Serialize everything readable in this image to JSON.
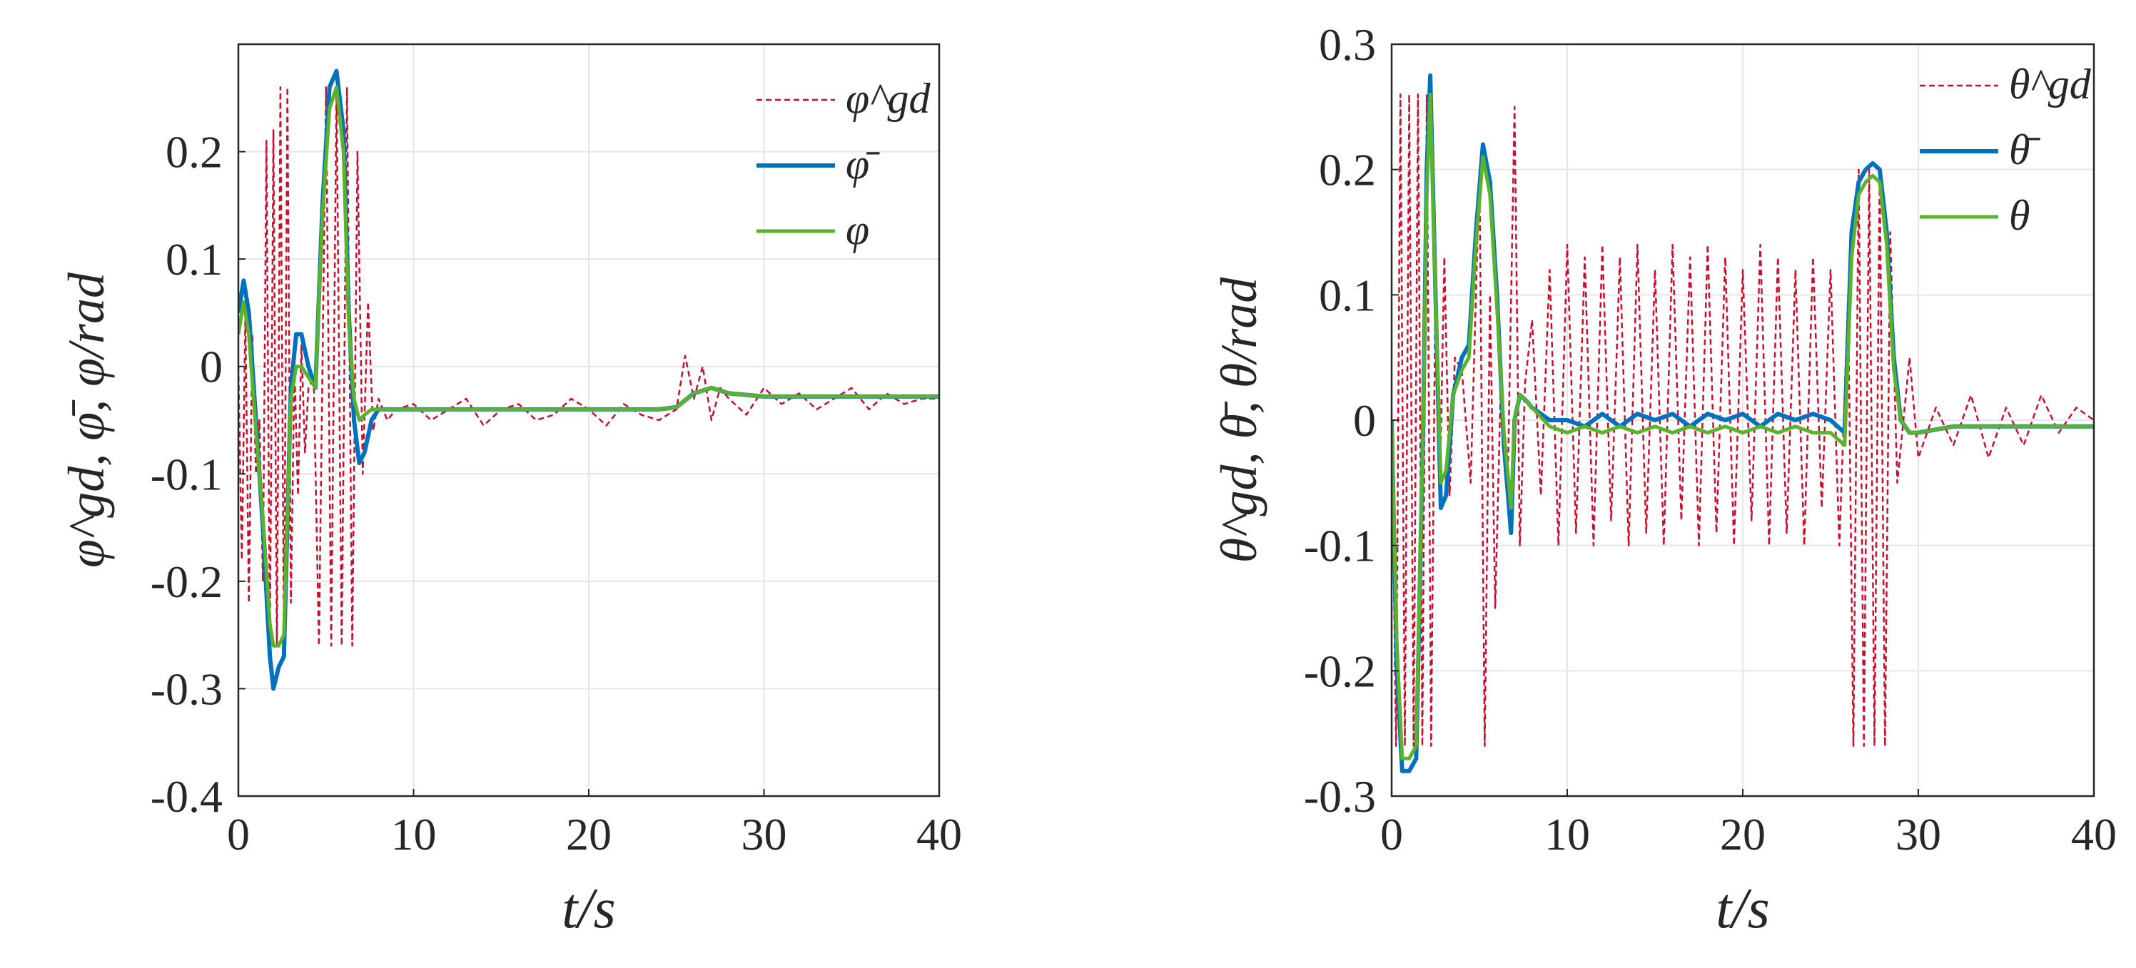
{
  "colors": {
    "reference": "#c8102e",
    "filtered": "#0072bd",
    "actual": "#5ab22e",
    "axis": "#262626"
  },
  "chart_data": [
    {
      "type": "line",
      "ylabel": "φ^gd, φ̄, φ/rad",
      "xlabel": "t/s",
      "xlim": [
        0,
        40
      ],
      "ylim": [
        -0.4,
        0.3
      ],
      "xticks": [
        0,
        10,
        20,
        30,
        40
      ],
      "xtick_labels": [
        "0",
        "10",
        "20",
        "30",
        "40"
      ],
      "yticks": [
        -0.4,
        -0.3,
        -0.2,
        -0.1,
        0,
        0.1,
        0.2
      ],
      "ytick_labels": [
        "-0.4",
        "-0.3",
        "-0.2",
        "-0.1",
        "0",
        "0.1",
        "0.2"
      ],
      "grid": true,
      "legend_position": "top-right",
      "legend": [
        "φ^gd",
        "φ̄",
        "φ"
      ],
      "series": [
        {
          "name": "φ^gd",
          "style": "dashed",
          "x": [
            0,
            0.2,
            0.4,
            0.6,
            0.8,
            1.0,
            1.2,
            1.4,
            1.6,
            1.8,
            2.0,
            2.2,
            2.4,
            2.6,
            2.8,
            3.0,
            3.2,
            3.4,
            3.6,
            3.8,
            4.0,
            4.3,
            4.6,
            5.0,
            5.3,
            5.6,
            5.9,
            6.2,
            6.5,
            6.8,
            7.1,
            7.4,
            7.7,
            8.0,
            8.5,
            9.0,
            10,
            11,
            12,
            13,
            14,
            15,
            16,
            17,
            18,
            19,
            20,
            21,
            22,
            23,
            24,
            25,
            25.5,
            26,
            26.5,
            27,
            27.5,
            28,
            29,
            30,
            31,
            32,
            33,
            34,
            35,
            36,
            37,
            38,
            39,
            40
          ],
          "y": [
            0.0,
            -0.18,
            0.05,
            -0.22,
            0.03,
            -0.1,
            -0.05,
            -0.2,
            0.21,
            -0.26,
            0.22,
            -0.26,
            0.26,
            -0.26,
            0.26,
            -0.22,
            0.0,
            -0.12,
            0.02,
            -0.08,
            -0.02,
            -0.01,
            -0.26,
            0.26,
            -0.26,
            0.26,
            -0.26,
            0.26,
            -0.26,
            0.2,
            -0.1,
            0.06,
            -0.06,
            -0.03,
            -0.05,
            -0.04,
            -0.035,
            -0.05,
            -0.04,
            -0.03,
            -0.055,
            -0.04,
            -0.035,
            -0.05,
            -0.045,
            -0.03,
            -0.04,
            -0.055,
            -0.035,
            -0.045,
            -0.05,
            -0.04,
            0.01,
            -0.03,
            0.0,
            -0.05,
            -0.02,
            -0.03,
            -0.045,
            -0.02,
            -0.035,
            -0.025,
            -0.04,
            -0.03,
            -0.02,
            -0.04,
            -0.025,
            -0.035,
            -0.03,
            -0.03
          ]
        },
        {
          "name": "φ̄",
          "style": "solid",
          "x": [
            0,
            0.3,
            0.6,
            1.0,
            1.4,
            1.8,
            2.0,
            2.3,
            2.6,
            3.0,
            3.3,
            3.6,
            4.0,
            4.4,
            4.8,
            5.2,
            5.6,
            6.0,
            6.3,
            6.6,
            6.9,
            7.2,
            7.6,
            8.0,
            9.0,
            10,
            15,
            20,
            24,
            25,
            26,
            27,
            28,
            30,
            35,
            40
          ],
          "y": [
            0.05,
            0.08,
            0.05,
            -0.05,
            -0.15,
            -0.27,
            -0.3,
            -0.28,
            -0.27,
            -0.02,
            0.03,
            0.03,
            0.0,
            -0.02,
            0.15,
            0.26,
            0.275,
            0.22,
            0.05,
            -0.05,
            -0.09,
            -0.08,
            -0.05,
            -0.04,
            -0.04,
            -0.04,
            -0.04,
            -0.04,
            -0.04,
            -0.038,
            -0.025,
            -0.02,
            -0.025,
            -0.028,
            -0.028,
            -0.028
          ]
        },
        {
          "name": "φ",
          "style": "solid",
          "x": [
            0,
            0.3,
            0.6,
            1.0,
            1.4,
            1.8,
            2.0,
            2.3,
            2.6,
            3.0,
            3.3,
            3.6,
            4.0,
            4.4,
            4.8,
            5.2,
            5.6,
            6.0,
            6.3,
            6.6,
            6.9,
            7.2,
            7.6,
            8.0,
            9.0,
            10,
            15,
            20,
            24,
            25,
            26,
            27,
            28,
            30,
            35,
            40
          ],
          "y": [
            0.03,
            0.06,
            0.03,
            -0.06,
            -0.14,
            -0.24,
            -0.26,
            -0.26,
            -0.25,
            -0.03,
            0.0,
            0.0,
            -0.01,
            -0.02,
            0.14,
            0.24,
            0.26,
            0.2,
            0.04,
            -0.03,
            -0.05,
            -0.045,
            -0.04,
            -0.04,
            -0.04,
            -0.04,
            -0.04,
            -0.04,
            -0.04,
            -0.038,
            -0.025,
            -0.02,
            -0.025,
            -0.028,
            -0.028,
            -0.028
          ]
        }
      ]
    },
    {
      "type": "line",
      "ylabel": "θ^gd, θ̄, θ/rad",
      "xlabel": "t/s",
      "xlim": [
        0,
        40
      ],
      "ylim": [
        -0.3,
        0.3
      ],
      "xticks": [
        0,
        10,
        20,
        30,
        40
      ],
      "xtick_labels": [
        "0",
        "10",
        "20",
        "30",
        "40"
      ],
      "yticks": [
        -0.3,
        -0.2,
        -0.1,
        0,
        0.1,
        0.2,
        0.3
      ],
      "ytick_labels": [
        "-0.3",
        "-0.2",
        "-0.1",
        "0",
        "0.1",
        "0.2",
        "0.3"
      ],
      "grid": true,
      "legend_position": "top-right",
      "legend": [
        "θ^gd",
        "θ̄",
        "θ"
      ],
      "series": [
        {
          "name": "θ^gd",
          "style": "dashed",
          "x": [
            0,
            0.25,
            0.5,
            0.75,
            1.0,
            1.25,
            1.5,
            1.75,
            2.0,
            2.25,
            2.5,
            2.75,
            3.0,
            3.3,
            3.6,
            4.0,
            4.5,
            5.0,
            5.3,
            5.6,
            5.9,
            6.2,
            6.6,
            7.0,
            7.3,
            7.6,
            8.0,
            8.5,
            9.0,
            9.5,
            10,
            10.5,
            11,
            11.5,
            12,
            12.5,
            13,
            13.5,
            14,
            14.5,
            15,
            15.5,
            16,
            16.5,
            17,
            17.5,
            18,
            18.5,
            19,
            19.5,
            20,
            20.5,
            21,
            21.5,
            22,
            22.5,
            23,
            23.5,
            24,
            24.5,
            25,
            25.5,
            26,
            26.3,
            26.6,
            26.9,
            27.2,
            27.5,
            27.8,
            28.1,
            28.4,
            28.8,
            29.5,
            30,
            31,
            32,
            33,
            34,
            35,
            36,
            37,
            38,
            39,
            40
          ],
          "y": [
            0.0,
            -0.26,
            0.26,
            -0.26,
            0.26,
            -0.26,
            0.26,
            -0.26,
            0.26,
            -0.26,
            0.12,
            -0.05,
            0.13,
            -0.06,
            0.05,
            0.04,
            -0.05,
            0.2,
            -0.26,
            0.1,
            -0.15,
            0.02,
            -0.06,
            0.25,
            -0.1,
            0.03,
            0.08,
            -0.06,
            0.12,
            -0.1,
            0.14,
            -0.09,
            0.13,
            -0.1,
            0.14,
            -0.08,
            0.13,
            -0.1,
            0.14,
            -0.09,
            0.12,
            -0.1,
            0.14,
            -0.08,
            0.13,
            -0.1,
            0.14,
            -0.09,
            0.13,
            -0.1,
            0.12,
            -0.08,
            0.14,
            -0.1,
            0.13,
            -0.09,
            0.12,
            -0.1,
            0.13,
            -0.07,
            0.12,
            -0.1,
            0.1,
            -0.26,
            0.2,
            -0.26,
            0.2,
            -0.26,
            0.2,
            -0.26,
            0.15,
            -0.05,
            0.05,
            -0.03,
            0.01,
            -0.02,
            0.02,
            -0.03,
            0.01,
            -0.02,
            0.02,
            -0.01,
            0.01,
            0.0
          ]
        },
        {
          "name": "θ̄",
          "style": "solid",
          "x": [
            0,
            0.3,
            0.6,
            1.0,
            1.4,
            1.8,
            2.0,
            2.2,
            2.5,
            2.8,
            3.1,
            3.5,
            4.0,
            4.4,
            4.8,
            5.2,
            5.6,
            6.0,
            6.4,
            6.8,
            7.0,
            7.3,
            7.7,
            8.0,
            9.0,
            10,
            11,
            12,
            13,
            14,
            15,
            16,
            17,
            18,
            19,
            20,
            21,
            22,
            23,
            24,
            25,
            25.8,
            26.2,
            26.6,
            27.0,
            27.4,
            27.8,
            28.2,
            28.6,
            29.0,
            29.5,
            30,
            32,
            35,
            40
          ],
          "y": [
            0.0,
            -0.2,
            -0.28,
            -0.28,
            -0.27,
            0.0,
            0.2,
            0.275,
            0.1,
            -0.07,
            -0.06,
            0.02,
            0.05,
            0.06,
            0.15,
            0.22,
            0.19,
            0.1,
            -0.02,
            -0.09,
            0.0,
            0.02,
            0.015,
            0.01,
            0.0,
            0.0,
            -0.005,
            0.005,
            -0.005,
            0.005,
            0.0,
            0.005,
            -0.005,
            0.005,
            0.0,
            0.005,
            -0.005,
            0.005,
            0.0,
            0.005,
            0.0,
            -0.01,
            0.15,
            0.19,
            0.2,
            0.205,
            0.2,
            0.15,
            0.05,
            0.0,
            -0.01,
            -0.01,
            -0.005,
            -0.005,
            -0.005
          ]
        },
        {
          "name": "θ",
          "style": "solid",
          "x": [
            0,
            0.3,
            0.6,
            1.0,
            1.4,
            1.8,
            2.0,
            2.2,
            2.5,
            2.8,
            3.1,
            3.5,
            4.0,
            4.4,
            4.8,
            5.2,
            5.6,
            6.0,
            6.4,
            6.8,
            7.0,
            7.3,
            7.7,
            8.0,
            9.0,
            10,
            11,
            12,
            13,
            14,
            15,
            16,
            17,
            18,
            19,
            20,
            21,
            22,
            23,
            24,
            25,
            25.8,
            26.2,
            26.6,
            27.0,
            27.4,
            27.8,
            28.2,
            28.6,
            29.0,
            29.5,
            30,
            32,
            35,
            40
          ],
          "y": [
            0.0,
            -0.18,
            -0.27,
            -0.27,
            -0.26,
            0.0,
            0.18,
            0.26,
            0.1,
            -0.05,
            -0.04,
            0.02,
            0.04,
            0.05,
            0.14,
            0.21,
            0.18,
            0.09,
            -0.01,
            -0.07,
            0.0,
            0.02,
            0.015,
            0.01,
            -0.005,
            -0.01,
            -0.005,
            -0.01,
            -0.005,
            -0.01,
            -0.005,
            -0.01,
            -0.005,
            -0.01,
            -0.005,
            -0.01,
            -0.005,
            -0.01,
            -0.005,
            -0.01,
            -0.01,
            -0.02,
            0.13,
            0.18,
            0.19,
            0.195,
            0.19,
            0.14,
            0.04,
            0.0,
            -0.01,
            -0.01,
            -0.005,
            -0.005,
            -0.005
          ]
        }
      ]
    }
  ]
}
